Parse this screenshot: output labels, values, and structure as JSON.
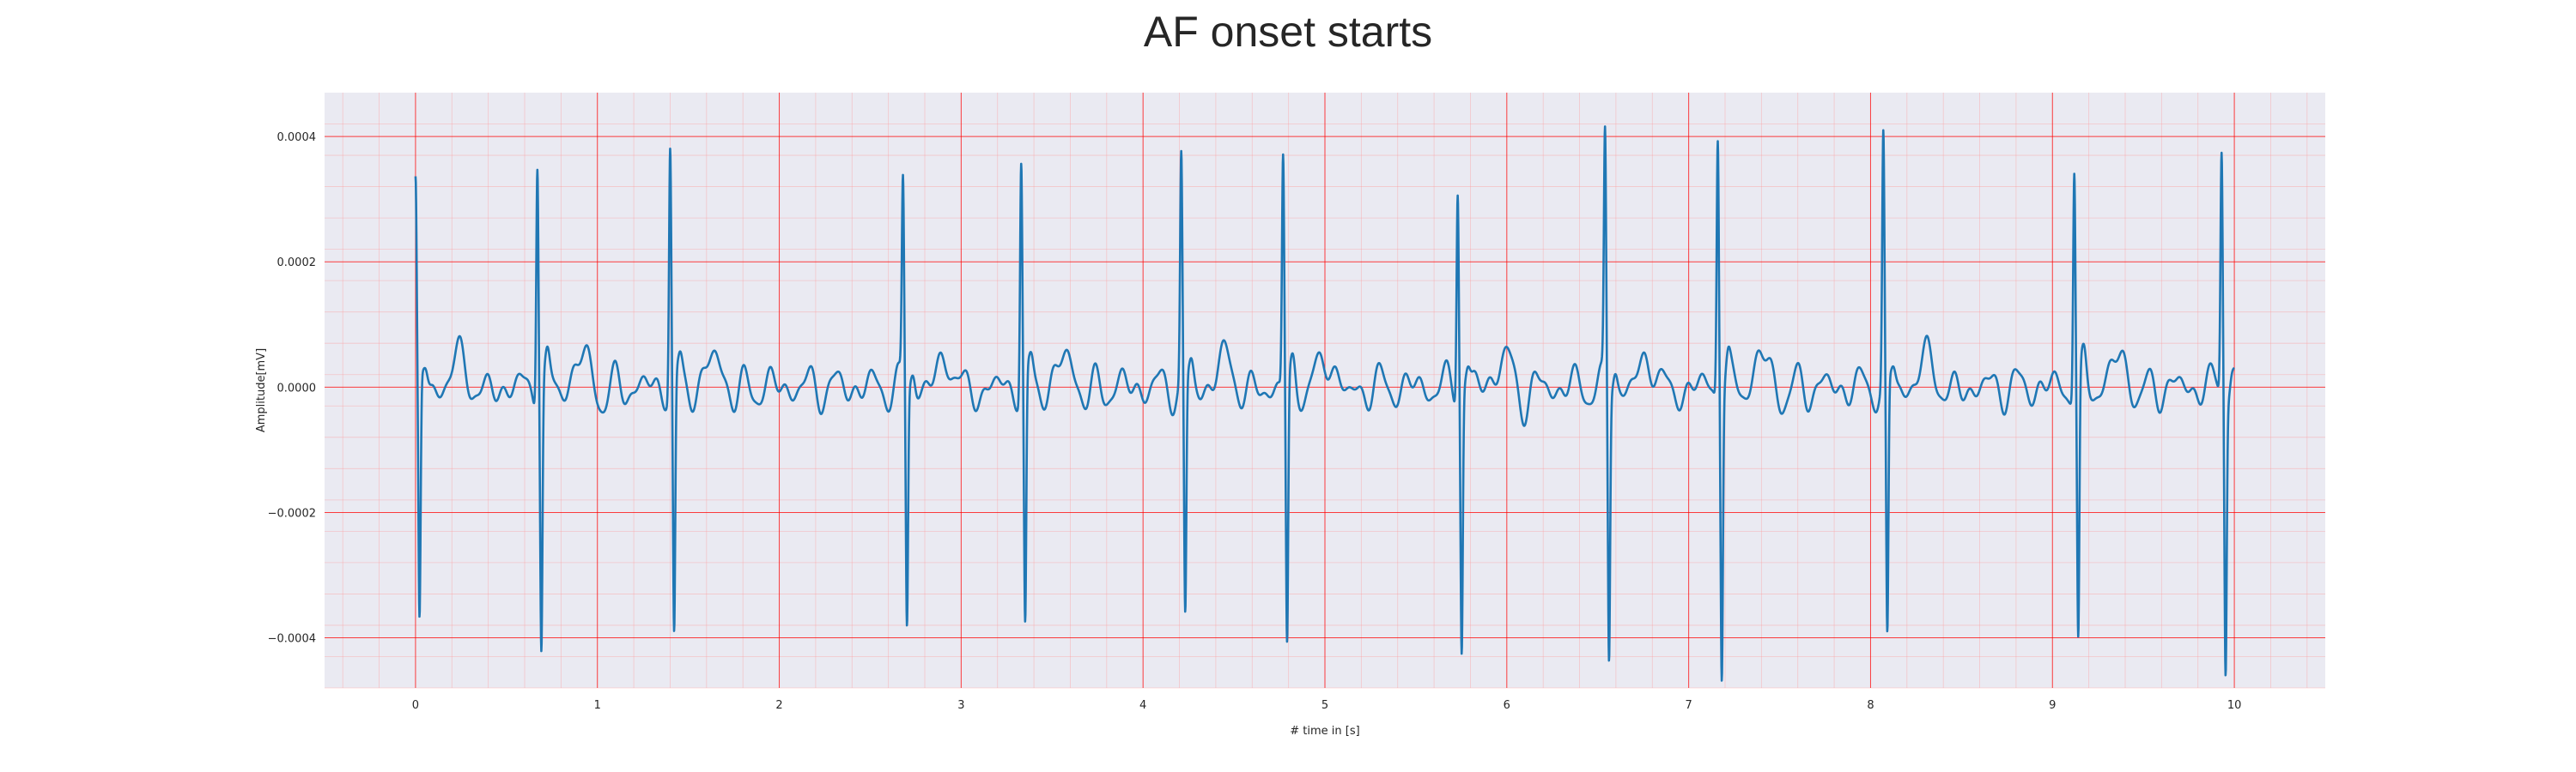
{
  "chart_data": {
    "type": "line",
    "title": "AF onset starts",
    "xlabel": "# time in [s]",
    "ylabel": "Amplitude[mV]",
    "xlim": [
      -0.5,
      10.5
    ],
    "ylim": [
      -0.00048,
      0.00047
    ],
    "xticks": [
      0,
      1,
      2,
      3,
      4,
      5,
      6,
      7,
      8,
      9,
      10
    ],
    "xtick_labels": [
      "0",
      "1",
      "2",
      "3",
      "4",
      "5",
      "6",
      "7",
      "8",
      "9",
      "10"
    ],
    "yticks": [
      -0.0004,
      -0.0002,
      0.0,
      0.0002,
      0.0004
    ],
    "ytick_labels": [
      "−0.0004",
      "−0.0002",
      "0.0000",
      "0.0002",
      "0.0004"
    ],
    "grid": true,
    "minor_grid": true,
    "colors": {
      "background": "#eaeaf2",
      "major_grid": "#ff0000",
      "minor_grid": "#ff9999",
      "line": "#1f77b4"
    },
    "series": [
      {
        "values_note": "ECG trace sampled points (x in s, y in mV)",
        "x_start": 0.0,
        "x_end": 10.0,
        "beats": [
          {
            "t": 0.0,
            "peak": 0.00032,
            "trough": -0.0004
          },
          {
            "t": 0.67,
            "peak": 0.00039,
            "trough": -0.00041
          },
          {
            "t": 1.4,
            "peak": 0.00039,
            "trough": -0.00041
          },
          {
            "t": 2.68,
            "peak": 0.00032,
            "trough": -0.00038
          },
          {
            "t": 3.33,
            "peak": 0.00037,
            "trough": -0.0004
          },
          {
            "t": 4.21,
            "peak": 0.00036,
            "trough": -0.00038
          },
          {
            "t": 4.77,
            "peak": 0.00037,
            "trough": -0.00042
          },
          {
            "t": 5.73,
            "peak": 0.00034,
            "trough": -0.00041
          },
          {
            "t": 6.54,
            "peak": 0.00039,
            "trough": -0.00043
          },
          {
            "t": 7.16,
            "peak": 0.00042,
            "trough": -0.00044
          },
          {
            "t": 8.07,
            "peak": 0.00039,
            "trough": -0.00042
          },
          {
            "t": 9.12,
            "peak": 0.00036,
            "trough": -0.00042
          },
          {
            "t": 9.93,
            "peak": 0.00039,
            "trough": -0.00043
          }
        ]
      }
    ]
  }
}
